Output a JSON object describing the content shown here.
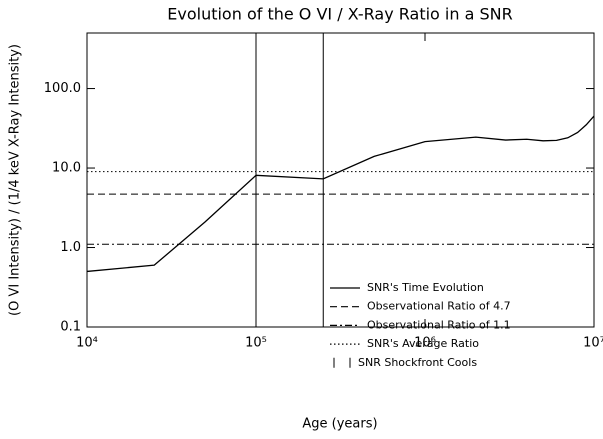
{
  "chart_data": {
    "type": "line",
    "title": "Evolution of the O VI / X-Ray Ratio in a SNR",
    "xlabel": "Age (years)",
    "ylabel": "(O VI Intensity) / (1/4 keV X-Ray Intensity)",
    "xscale": "log",
    "yscale": "log",
    "xlim": [
      10000,
      10000000
    ],
    "ylim": [
      0.1,
      500
    ],
    "xticks": [
      {
        "value": 10000,
        "label": "10⁴"
      },
      {
        "value": 100000,
        "label": "10⁵"
      },
      {
        "value": 1000000,
        "label": "10⁶"
      },
      {
        "value": 10000000,
        "label": "10⁷"
      }
    ],
    "yticks": [
      {
        "value": 0.1,
        "label": "0.1"
      },
      {
        "value": 1,
        "label": "1.0"
      },
      {
        "value": 10,
        "label": "10.0"
      },
      {
        "value": 100,
        "label": "100.0"
      }
    ],
    "legend": "lower right",
    "color": "#000000",
    "series": [
      {
        "name": "SNR's Time Evolution",
        "style": "solid",
        "x": [
          10000,
          25000,
          50000,
          100000,
          250000,
          500000,
          1000000,
          2000000,
          3000000,
          4000000,
          5000000,
          6000000,
          7000000,
          8000000,
          9000000,
          10000000
        ],
        "values": [
          0.5,
          0.6,
          2.1,
          8.1,
          7.3,
          14,
          21.5,
          24.5,
          22.5,
          23,
          22,
          22.3,
          24,
          28,
          35,
          45
        ]
      }
    ],
    "hlines": [
      {
        "name": "Observational Ratio of 4.7",
        "value": 4.7,
        "style": "dashed"
      },
      {
        "name": "Observational Ratio of 1.1",
        "value": 1.1,
        "style": "dashdot"
      },
      {
        "name": "SNR's Average Ratio",
        "value": 9,
        "style": "dotted"
      }
    ],
    "vlines": {
      "name": "SNR Shockfront Cools",
      "values": [
        100000,
        250000
      ]
    }
  }
}
